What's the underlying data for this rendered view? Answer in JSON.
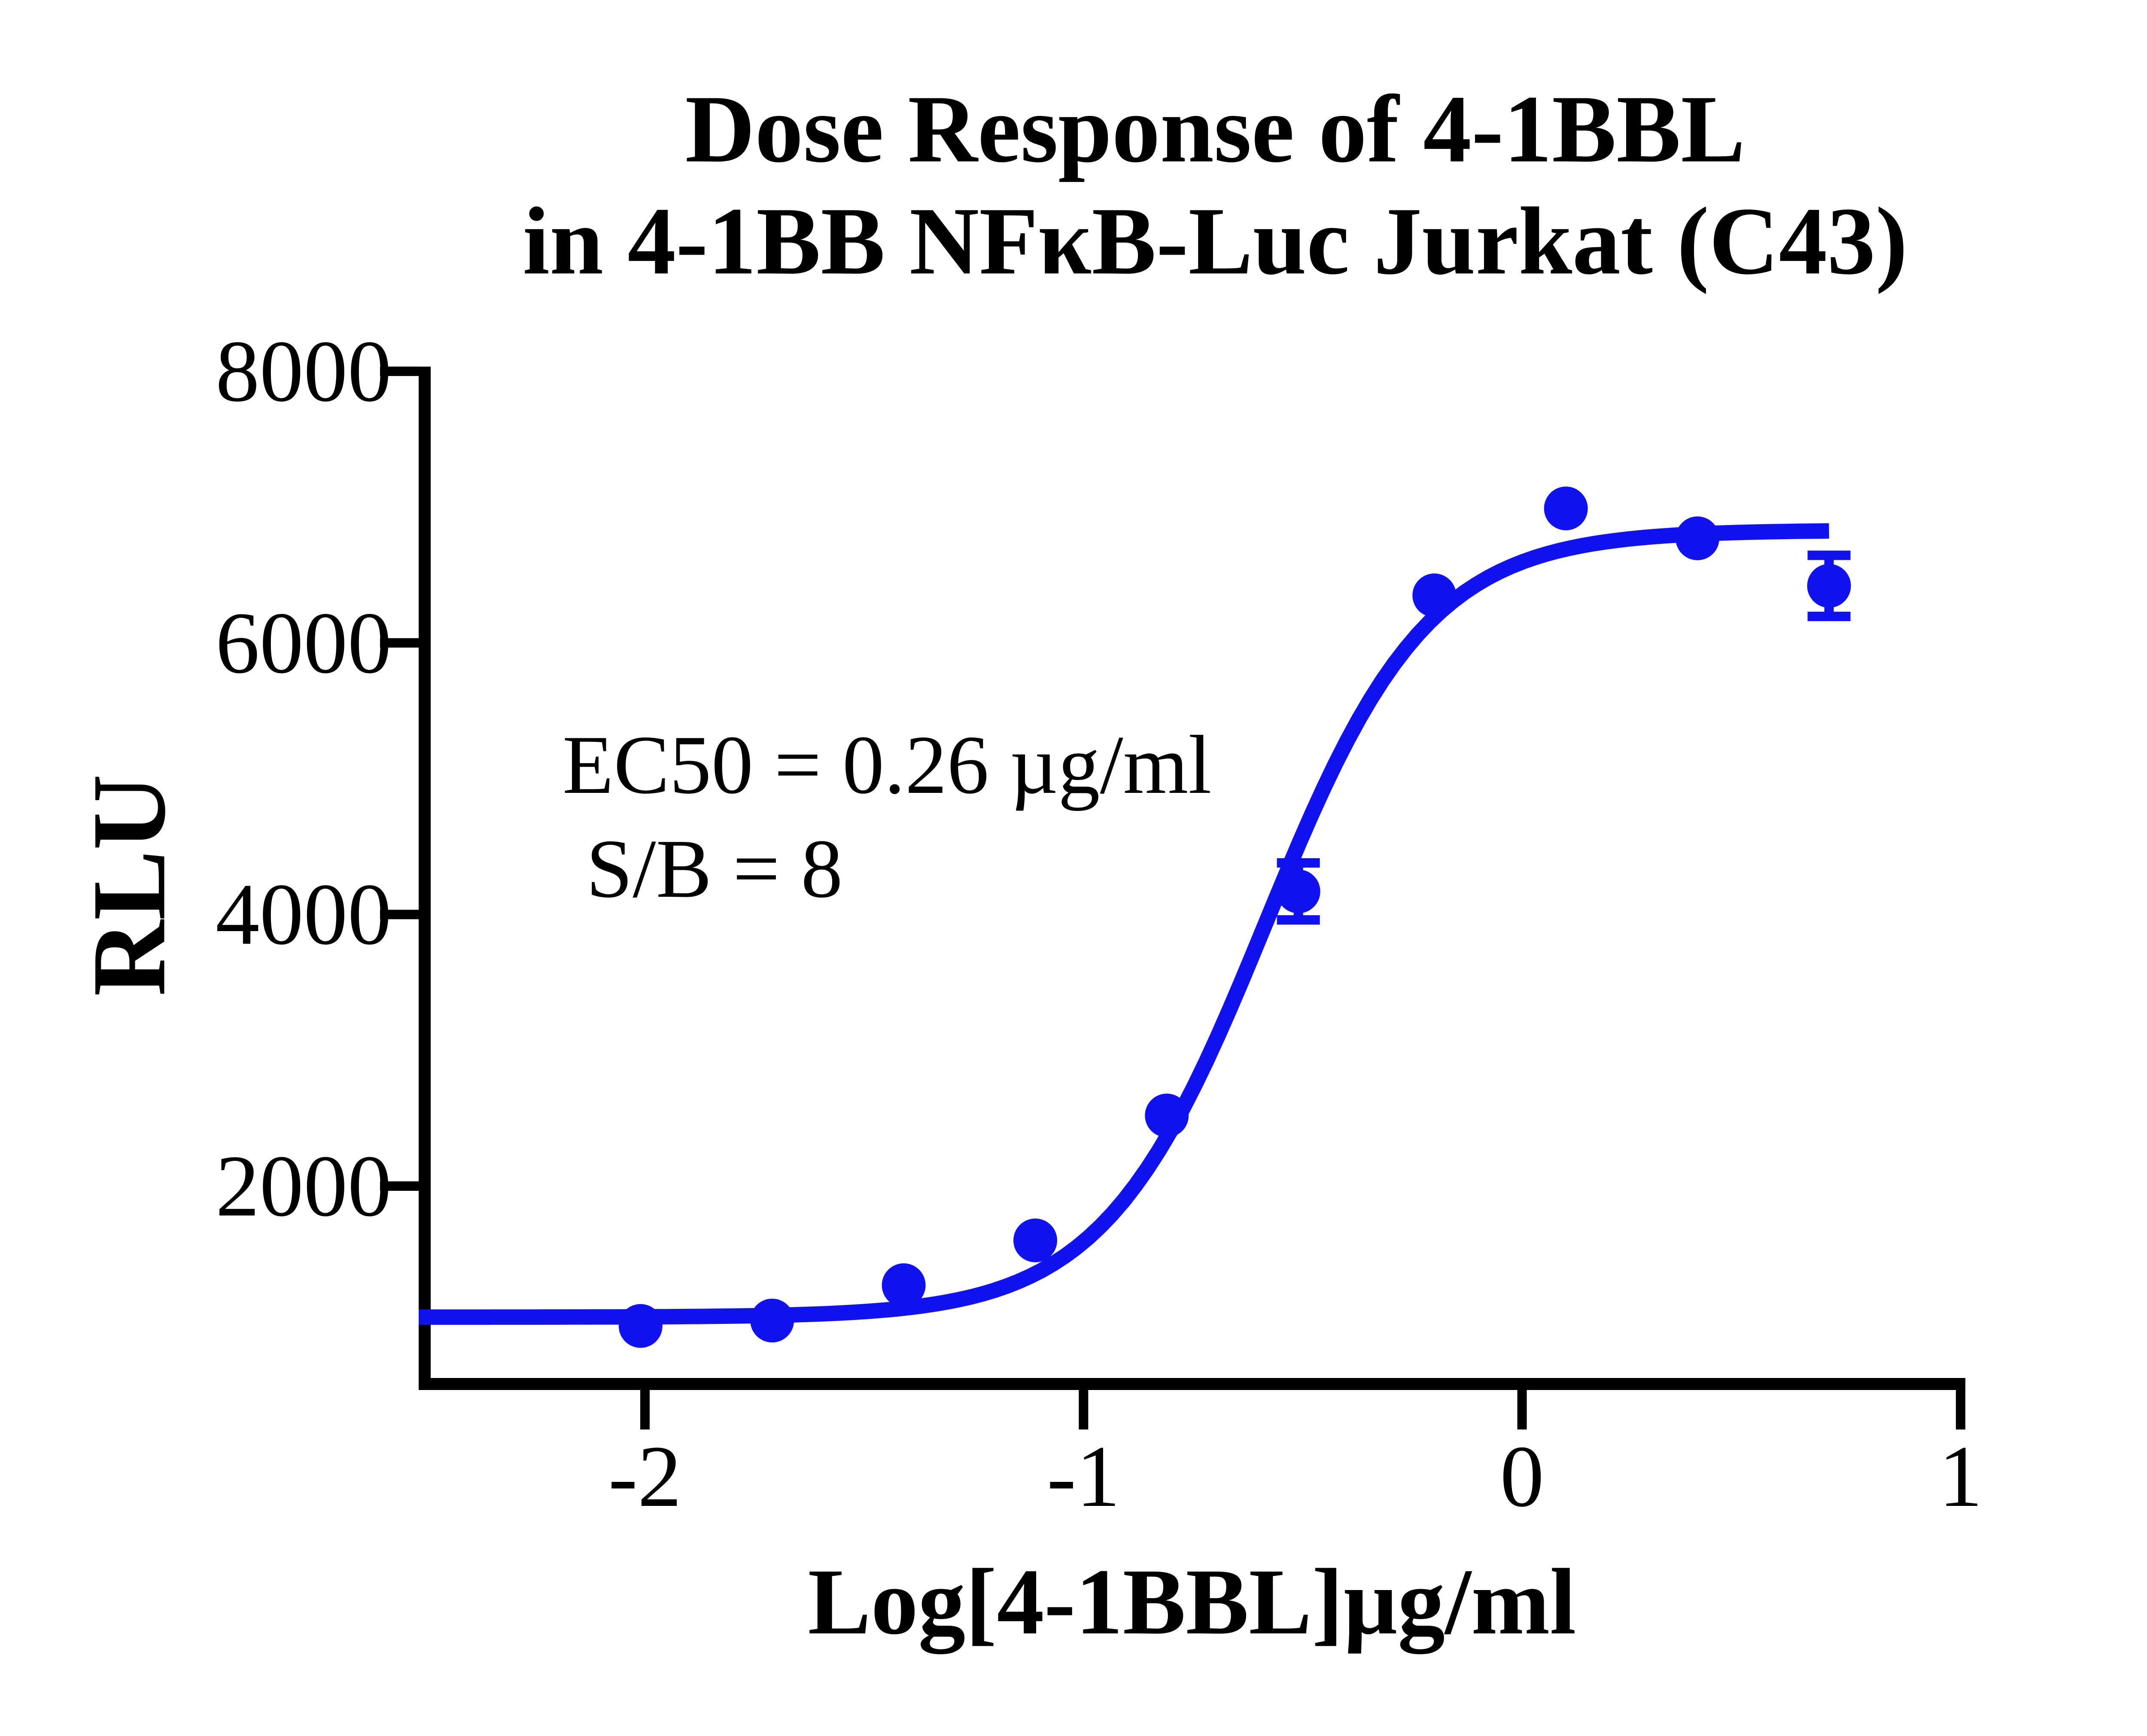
{
  "chart_data": {
    "type": "scatter",
    "title_line1": "Dose Response of 4-1BBL",
    "title_line2": "in 4-1BB NFκB-Luc Jurkat (C43)",
    "xlabel": "Log[4-1BBL]µg/ml",
    "ylabel": "RLU",
    "annotation": {
      "ec50": "EC50 = 0.26 µg/ml",
      "sb": "S/B = 8"
    },
    "x_ticks": [
      {
        "value": -2,
        "label": "-2"
      },
      {
        "value": -1,
        "label": "-1"
      },
      {
        "value": 0,
        "label": "0"
      },
      {
        "value": 1,
        "label": "1"
      }
    ],
    "y_ticks": [
      {
        "value": 2000,
        "label": "2000"
      },
      {
        "value": 4000,
        "label": "4000"
      },
      {
        "value": 6000,
        "label": "6000"
      },
      {
        "value": 8000,
        "label": "8000"
      }
    ],
    "xlim": [
      -2.52,
      1.0
    ],
    "ylim": [
      520,
      8000
    ],
    "grid": false,
    "legend_position": "none",
    "colors": {
      "series": "#1212ee",
      "axis": "#000000",
      "text": "#000000"
    },
    "series": [
      {
        "name": "4-1BBL",
        "marker": "circle",
        "points": [
          {
            "x": -2.01,
            "y": 970,
            "yerr": null
          },
          {
            "x": -1.71,
            "y": 1010,
            "yerr": null
          },
          {
            "x": -1.41,
            "y": 1270,
            "yerr": null
          },
          {
            "x": -1.11,
            "y": 1600,
            "yerr": null
          },
          {
            "x": -0.81,
            "y": 2520,
            "yerr": null
          },
          {
            "x": -0.51,
            "y": 4170,
            "yerr": 210
          },
          {
            "x": -0.2,
            "y": 6350,
            "yerr": null
          },
          {
            "x": 0.1,
            "y": 6990,
            "yerr": null
          },
          {
            "x": 0.4,
            "y": 6770,
            "yerr": null
          },
          {
            "x": 0.7,
            "y": 6420,
            "yerr": 225
          }
        ]
      }
    ],
    "fit_curve": {
      "model": "4PL",
      "bottom": 1035,
      "top": 6830,
      "log_ec50": -0.585,
      "hill": 2.35,
      "x_start": -2.516,
      "x_end": 0.7
    }
  }
}
